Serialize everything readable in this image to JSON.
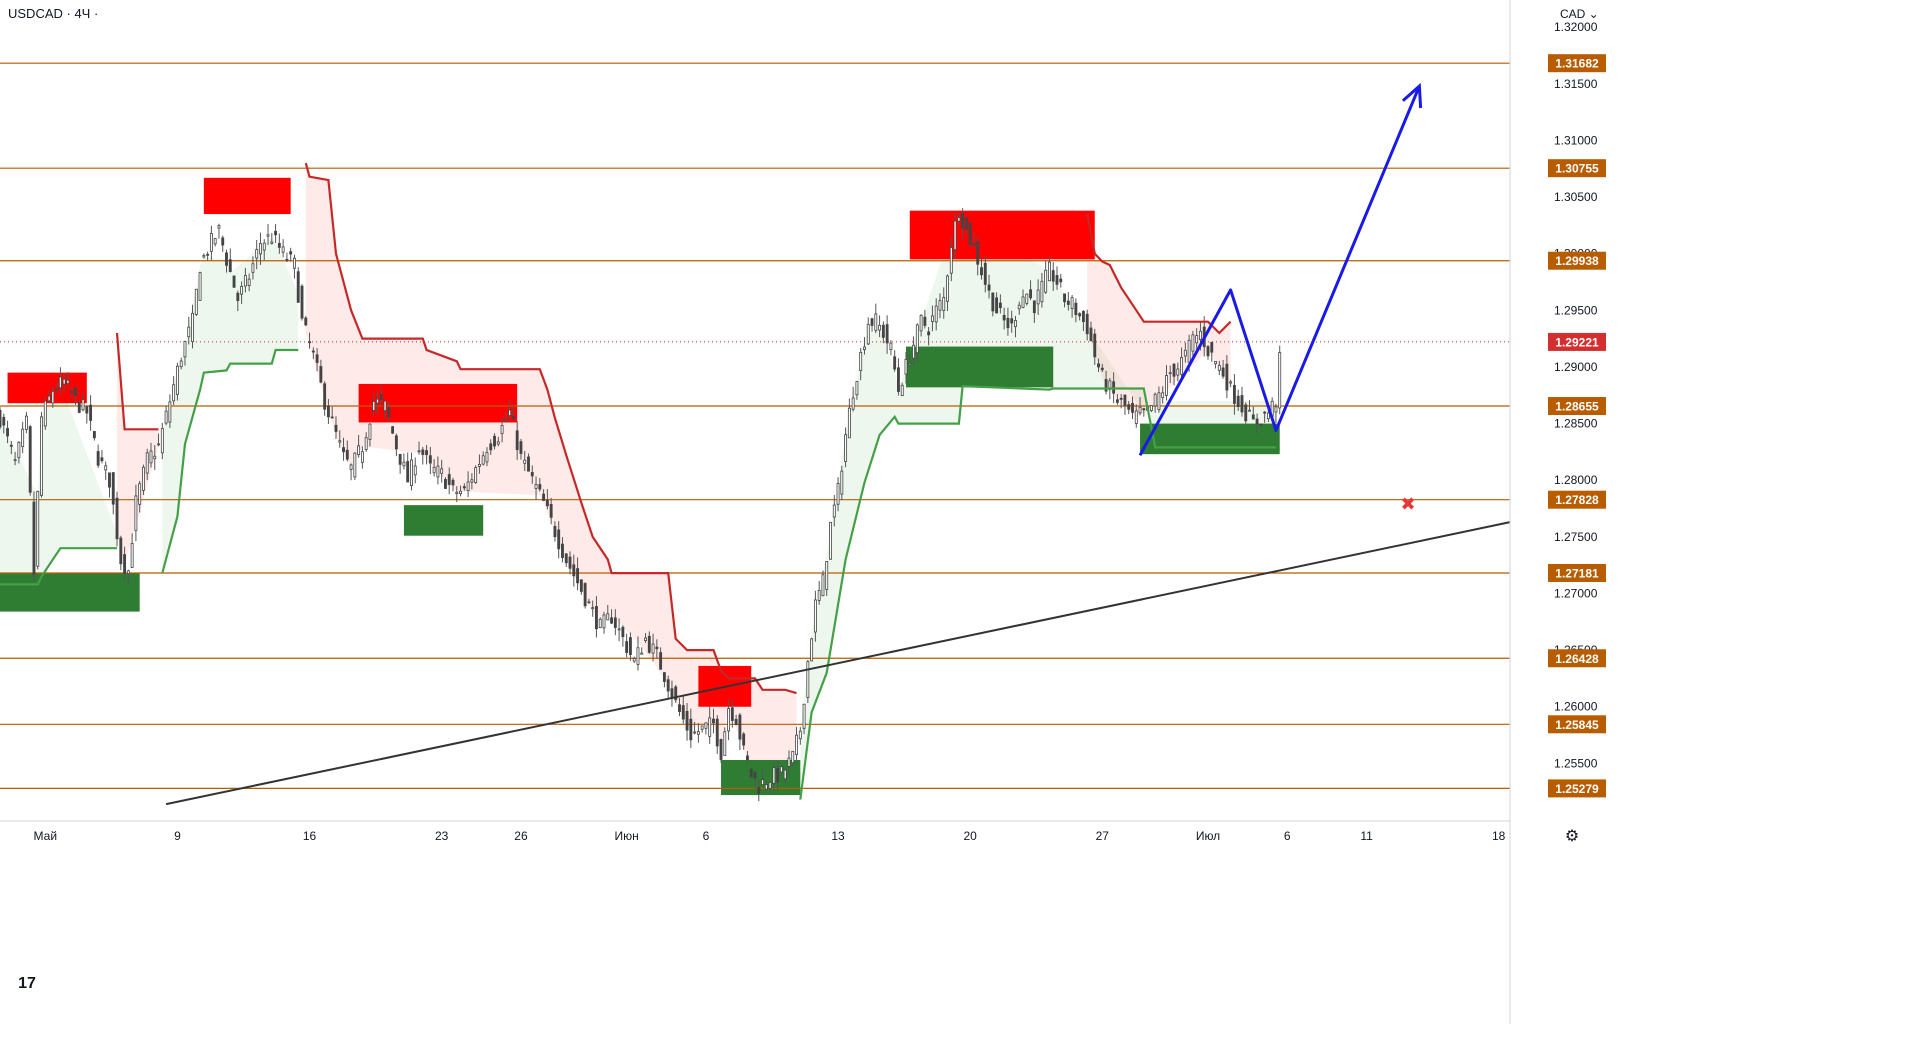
{
  "header": {
    "symbol_line": "USDCAD · 4Ч ·"
  },
  "axis": {
    "currency_label": "CAD",
    "settings_icon": "gear-icon"
  },
  "logo": {
    "text": "17"
  },
  "chart_data": {
    "type": "candlestick",
    "title": "",
    "y_range": [
      1.25,
      1.3224
    ],
    "x_range_bars": [
      0,
      400
    ],
    "x_ticks": [
      {
        "bar": 12,
        "label": "Май"
      },
      {
        "bar": 47,
        "label": "9"
      },
      {
        "bar": 82,
        "label": "16"
      },
      {
        "bar": 117,
        "label": "23"
      },
      {
        "bar": 138,
        "label": "26"
      },
      {
        "bar": 166,
        "label": "Июн"
      },
      {
        "bar": 187,
        "label": "6"
      },
      {
        "bar": 222,
        "label": "13"
      },
      {
        "bar": 257,
        "label": "20"
      },
      {
        "bar": 292,
        "label": "27"
      },
      {
        "bar": 320,
        "label": "Июл"
      },
      {
        "bar": 341,
        "label": "6"
      },
      {
        "bar": 362,
        "label": "11"
      },
      {
        "bar": 397,
        "label": "18"
      }
    ],
    "y_ticks": [
      "1.32000",
      "1.31500",
      "1.31000",
      "1.30500",
      "1.30000",
      "1.29500",
      "1.29000",
      "1.28500",
      "1.28000",
      "1.27500",
      "1.27000",
      "1.26500",
      "1.26000",
      "1.25500"
    ],
    "current_price": "1.29221",
    "levels": [
      "1.31682",
      "1.30755",
      "1.29938",
      "1.28655",
      "1.27828",
      "1.27181",
      "1.26428",
      "1.25845",
      "1.25279"
    ],
    "callouts": [
      {
        "text": "1.31682",
        "price": 1.31682,
        "style": "black"
      },
      {
        "text": "1.30755",
        "price": 1.30755,
        "style": "black"
      },
      {
        "text": "1.28655",
        "price": 1.28655,
        "style": "green"
      },
      {
        "text": "1.27828",
        "price": 1.27828,
        "style": "red"
      }
    ],
    "supply_zones": [
      {
        "bar0": 2,
        "bar1": 23,
        "top": 1.2895,
        "bottom": 1.2868
      },
      {
        "bar0": 54,
        "bar1": 77,
        "top": 1.3067,
        "bottom": 1.3035
      },
      {
        "bar0": 95,
        "bar1": 137,
        "top": 1.2885,
        "bottom": 1.2851
      },
      {
        "bar0": 185,
        "bar1": 199,
        "top": 1.2636,
        "bottom": 1.26
      },
      {
        "bar0": 241,
        "bar1": 290,
        "top": 1.3038,
        "bottom": 1.2995
      }
    ],
    "demand_zones": [
      {
        "bar0": 0,
        "bar1": 37,
        "top": 1.2718,
        "bottom": 1.2684
      },
      {
        "bar0": 107,
        "bar1": 128,
        "top": 1.2778,
        "bottom": 1.2751
      },
      {
        "bar0": 191,
        "bar1": 212,
        "top": 1.2553,
        "bottom": 1.2522
      },
      {
        "bar0": 240,
        "bar1": 279,
        "top": 1.2918,
        "bottom": 1.2882
      },
      {
        "bar0": 302,
        "bar1": 339,
        "top": 1.285,
        "bottom": 1.2823
      }
    ],
    "trendline": {
      "start": {
        "bar": 44,
        "price": 1.2514
      },
      "end": {
        "bar": 400,
        "price": 1.2763
      }
    },
    "projection_path": [
      {
        "bar": 302,
        "price": 1.2822
      },
      {
        "bar": 326,
        "price": 1.2968
      },
      {
        "bar": 338,
        "price": 1.2844
      },
      {
        "bar": 376,
        "price": 1.3148
      }
    ],
    "target_marker": {
      "bar": 373,
      "price": 1.2779,
      "symbol": "✖"
    },
    "supertrend_up": [
      [
        [
          0,
          1.2708
        ],
        [
          10,
          1.2708
        ],
        [
          11,
          1.2715
        ],
        [
          16,
          1.274
        ],
        [
          31,
          1.274
        ]
      ],
      [
        [
          43,
          1.2718
        ],
        [
          47,
          1.2768
        ],
        [
          49,
          1.2832
        ],
        [
          53,
          1.288
        ],
        [
          54,
          1.2895
        ],
        [
          60,
          1.2897
        ],
        [
          61,
          1.2903
        ],
        [
          72,
          1.2903
        ],
        [
          73,
          1.2915
        ],
        [
          79,
          1.2915
        ]
      ],
      [
        [
          212,
          1.2518
        ],
        [
          215,
          1.2595
        ],
        [
          219,
          1.263
        ],
        [
          224,
          1.273
        ],
        [
          229,
          1.2798
        ],
        [
          233,
          1.284
        ],
        [
          237,
          1.2856
        ],
        [
          238,
          1.285
        ],
        [
          254,
          1.285
        ],
        [
          255,
          1.2883
        ],
        [
          278,
          1.288
        ],
        [
          279,
          1.2881
        ],
        [
          303,
          1.2881
        ],
        [
          306,
          1.2829
        ],
        [
          338,
          1.2829
        ]
      ]
    ],
    "supertrend_down": [
      [
        [
          31,
          1.293
        ],
        [
          33,
          1.2845
        ],
        [
          42,
          1.2845
        ]
      ],
      [
        [
          81,
          1.308
        ],
        [
          82,
          1.3068
        ],
        [
          87,
          1.3065
        ],
        [
          89,
          1.3
        ],
        [
          93,
          1.295
        ],
        [
          96,
          1.2925
        ],
        [
          112,
          1.2925
        ],
        [
          113,
          1.2915
        ],
        [
          121,
          1.2905
        ],
        [
          122,
          1.2898
        ],
        [
          143,
          1.2898
        ],
        [
          145,
          1.288
        ],
        [
          147,
          1.2855
        ],
        [
          150,
          1.2822
        ],
        [
          154,
          1.278
        ],
        [
          157,
          1.275
        ],
        [
          161,
          1.273
        ],
        [
          162,
          1.2718
        ],
        [
          170,
          1.2718
        ],
        [
          177,
          1.2718
        ],
        [
          179,
          1.266
        ],
        [
          182,
          1.265
        ],
        [
          189,
          1.265
        ],
        [
          191,
          1.2632
        ],
        [
          193,
          1.2625
        ],
        [
          200,
          1.2625
        ],
        [
          202,
          1.2615
        ],
        [
          208,
          1.2615
        ],
        [
          211,
          1.2612
        ]
      ],
      [
        [
          288,
          1.3035
        ],
        [
          290,
          1.3
        ],
        [
          292,
          1.2993
        ],
        [
          294,
          1.299
        ],
        [
          297,
          1.297
        ],
        [
          301,
          1.295
        ],
        [
          303,
          1.294
        ],
        [
          320,
          1.294
        ],
        [
          323,
          1.293
        ],
        [
          326,
          1.294
        ]
      ]
    ],
    "ohlc_anchors": [
      [
        0,
        1.2855
      ],
      [
        4,
        1.2815
      ],
      [
        7,
        1.285
      ],
      [
        9,
        1.2718
      ],
      [
        11,
        1.2855
      ],
      [
        14,
        1.288
      ],
      [
        17,
        1.2887
      ],
      [
        20,
        1.287
      ],
      [
        23,
        1.286
      ],
      [
        26,
        1.282
      ],
      [
        29,
        1.28
      ],
      [
        32,
        1.273
      ],
      [
        34,
        1.272
      ],
      [
        36,
        1.278
      ],
      [
        39,
        1.2818
      ],
      [
        42,
        1.283
      ],
      [
        45,
        1.287
      ],
      [
        48,
        1.291
      ],
      [
        51,
        1.294
      ],
      [
        53,
        1.299
      ],
      [
        56,
        1.301
      ],
      [
        58,
        1.302
      ],
      [
        60,
        1.2995
      ],
      [
        63,
        1.296
      ],
      [
        66,
        1.298
      ],
      [
        69,
        1.301
      ],
      [
        72,
        1.3015
      ],
      [
        75,
        1.3
      ],
      [
        78,
        1.299
      ],
      [
        80,
        1.294
      ],
      [
        83,
        1.291
      ],
      [
        86,
        1.287
      ],
      [
        89,
        1.284
      ],
      [
        91,
        1.282
      ],
      [
        93,
        1.281
      ],
      [
        96,
        1.283
      ],
      [
        99,
        1.287
      ],
      [
        102,
        1.2865
      ],
      [
        105,
        1.283
      ],
      [
        108,
        1.28
      ],
      [
        111,
        1.283
      ],
      [
        114,
        1.281
      ],
      [
        117,
        1.2805
      ],
      [
        120,
        1.279
      ],
      [
        123,
        1.279
      ],
      [
        126,
        1.281
      ],
      [
        129,
        1.283
      ],
      [
        132,
        1.284
      ],
      [
        135,
        1.286
      ],
      [
        138,
        1.282
      ],
      [
        141,
        1.28
      ],
      [
        144,
        1.278
      ],
      [
        147,
        1.2755
      ],
      [
        150,
        1.273
      ],
      [
        153,
        1.271
      ],
      [
        156,
        1.269
      ],
      [
        159,
        1.267
      ],
      [
        162,
        1.268
      ],
      [
        165,
        1.266
      ],
      [
        168,
        1.264
      ],
      [
        171,
        1.266
      ],
      [
        174,
        1.2645
      ],
      [
        177,
        1.262
      ],
      [
        180,
        1.2595
      ],
      [
        183,
        1.2575
      ],
      [
        186,
        1.258
      ],
      [
        189,
        1.2585
      ],
      [
        191,
        1.256
      ],
      [
        193,
        1.26
      ],
      [
        195,
        1.259
      ],
      [
        197,
        1.256
      ],
      [
        199,
        1.254
      ],
      [
        201,
        1.253
      ],
      [
        204,
        1.2538
      ],
      [
        207,
        1.254
      ],
      [
        210,
        1.2555
      ],
      [
        212,
        1.258
      ],
      [
        214,
        1.264
      ],
      [
        216,
        1.269
      ],
      [
        218,
        1.271
      ],
      [
        220,
        1.276
      ],
      [
        222,
        1.279
      ],
      [
        224,
        1.284
      ],
      [
        226,
        1.288
      ],
      [
        228,
        1.291
      ],
      [
        230,
        1.294
      ],
      [
        232,
        1.294
      ],
      [
        234,
        1.293
      ],
      [
        236,
        1.2915
      ],
      [
        238,
        1.288
      ],
      [
        240,
        1.29
      ],
      [
        242,
        1.292
      ],
      [
        244,
        1.294
      ],
      [
        246,
        1.2935
      ],
      [
        248,
        1.295
      ],
      [
        250,
        1.296
      ],
      [
        252,
        1.301
      ],
      [
        254,
        1.304
      ],
      [
        256,
        1.302
      ],
      [
        258,
        1.3005
      ],
      [
        260,
        1.2985
      ],
      [
        262,
        1.2965
      ],
      [
        264,
        1.295
      ],
      [
        266,
        1.294
      ],
      [
        268,
        1.2935
      ],
      [
        270,
        1.296
      ],
      [
        272,
        1.2965
      ],
      [
        274,
        1.2955
      ],
      [
        276,
        1.297
      ],
      [
        278,
        1.2985
      ],
      [
        280,
        1.2975
      ],
      [
        282,
        1.296
      ],
      [
        284,
        1.2955
      ],
      [
        286,
        1.2945
      ],
      [
        288,
        1.2935
      ],
      [
        290,
        1.291
      ],
      [
        292,
        1.289
      ],
      [
        294,
        1.288
      ],
      [
        296,
        1.287
      ],
      [
        298,
        1.2865
      ],
      [
        300,
        1.2855
      ],
      [
        302,
        1.2858
      ],
      [
        304,
        1.286
      ],
      [
        306,
        1.287
      ],
      [
        308,
        1.288
      ],
      [
        310,
        1.2895
      ],
      [
        312,
        1.29
      ],
      [
        314,
        1.291
      ],
      [
        316,
        1.2925
      ],
      [
        318,
        1.293
      ],
      [
        320,
        1.2915
      ],
      [
        322,
        1.2905
      ],
      [
        324,
        1.2895
      ],
      [
        326,
        1.288
      ],
      [
        328,
        1.287
      ],
      [
        330,
        1.286
      ],
      [
        332,
        1.285
      ],
      [
        334,
        1.2855
      ],
      [
        336,
        1.286
      ],
      [
        338,
        1.287
      ],
      [
        339,
        1.2905
      ]
    ]
  }
}
